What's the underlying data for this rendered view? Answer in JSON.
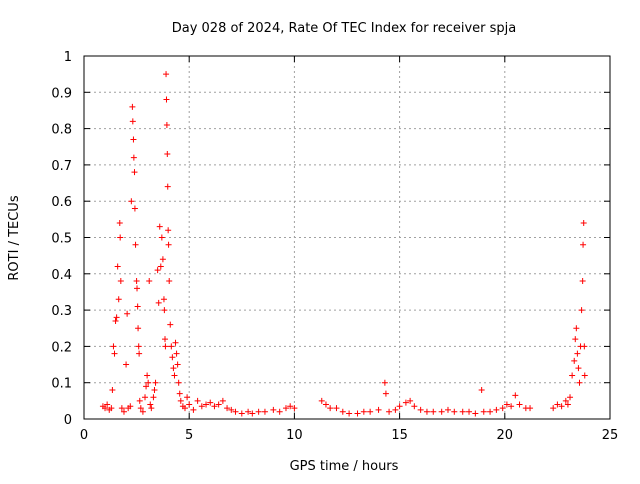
{
  "chart_data": {
    "type": "scatter",
    "title": "Day 028 of 2024, Rate Of TEC Index for receiver spja",
    "xlabel": "GPS time / hours",
    "ylabel": "ROTI / TECUs",
    "xlim": [
      0,
      25
    ],
    "ylim": [
      0,
      1
    ],
    "x_ticks": [
      "0",
      "5",
      "10",
      "15",
      "20",
      "25"
    ],
    "y_ticks": [
      "0",
      "0.1",
      "0.2",
      "0.3",
      "0.4",
      "0.5",
      "0.6",
      "0.7",
      "0.8",
      "0.9",
      "1"
    ],
    "grid": true,
    "marker": "plus",
    "color": "#ff0000",
    "points": [
      [
        0.9,
        0.035
      ],
      [
        1.0,
        0.03
      ],
      [
        1.1,
        0.04
      ],
      [
        1.2,
        0.025
      ],
      [
        1.3,
        0.03
      ],
      [
        1.35,
        0.08
      ],
      [
        1.4,
        0.2
      ],
      [
        1.45,
        0.18
      ],
      [
        1.5,
        0.27
      ],
      [
        1.55,
        0.28
      ],
      [
        1.6,
        0.42
      ],
      [
        1.65,
        0.33
      ],
      [
        1.7,
        0.54
      ],
      [
        1.72,
        0.5
      ],
      [
        1.75,
        0.38
      ],
      [
        1.8,
        0.03
      ],
      [
        1.9,
        0.02
      ],
      [
        2.0,
        0.15
      ],
      [
        2.05,
        0.29
      ],
      [
        2.1,
        0.03
      ],
      [
        2.2,
        0.035
      ],
      [
        2.25,
        0.6
      ],
      [
        2.3,
        0.86
      ],
      [
        2.32,
        0.82
      ],
      [
        2.35,
        0.77
      ],
      [
        2.37,
        0.72
      ],
      [
        2.4,
        0.68
      ],
      [
        2.42,
        0.58
      ],
      [
        2.45,
        0.48
      ],
      [
        2.5,
        0.38
      ],
      [
        2.52,
        0.36
      ],
      [
        2.55,
        0.31
      ],
      [
        2.57,
        0.25
      ],
      [
        2.6,
        0.2
      ],
      [
        2.62,
        0.18
      ],
      [
        2.65,
        0.05
      ],
      [
        2.7,
        0.03
      ],
      [
        2.8,
        0.02
      ],
      [
        2.9,
        0.06
      ],
      [
        2.95,
        0.09
      ],
      [
        3.0,
        0.12
      ],
      [
        3.05,
        0.1
      ],
      [
        3.1,
        0.38
      ],
      [
        3.15,
        0.04
      ],
      [
        3.2,
        0.03
      ],
      [
        3.3,
        0.06
      ],
      [
        3.35,
        0.08
      ],
      [
        3.4,
        0.1
      ],
      [
        3.5,
        0.41
      ],
      [
        3.55,
        0.32
      ],
      [
        3.6,
        0.53
      ],
      [
        3.65,
        0.42
      ],
      [
        3.7,
        0.5
      ],
      [
        3.75,
        0.44
      ],
      [
        3.8,
        0.33
      ],
      [
        3.82,
        0.3
      ],
      [
        3.85,
        0.22
      ],
      [
        3.87,
        0.2
      ],
      [
        3.9,
        0.95
      ],
      [
        3.92,
        0.88
      ],
      [
        3.94,
        0.81
      ],
      [
        3.96,
        0.73
      ],
      [
        3.98,
        0.64
      ],
      [
        4.0,
        0.52
      ],
      [
        4.02,
        0.48
      ],
      [
        4.05,
        0.38
      ],
      [
        4.1,
        0.26
      ],
      [
        4.15,
        0.2
      ],
      [
        4.2,
        0.17
      ],
      [
        4.25,
        0.14
      ],
      [
        4.3,
        0.12
      ],
      [
        4.35,
        0.21
      ],
      [
        4.4,
        0.18
      ],
      [
        4.45,
        0.15
      ],
      [
        4.5,
        0.1
      ],
      [
        4.55,
        0.07
      ],
      [
        4.6,
        0.05
      ],
      [
        4.7,
        0.035
      ],
      [
        4.8,
        0.03
      ],
      [
        4.9,
        0.06
      ],
      [
        5.0,
        0.04
      ],
      [
        5.2,
        0.025
      ],
      [
        5.4,
        0.05
      ],
      [
        5.6,
        0.035
      ],
      [
        5.8,
        0.04
      ],
      [
        6.0,
        0.045
      ],
      [
        6.2,
        0.035
      ],
      [
        6.4,
        0.04
      ],
      [
        6.6,
        0.05
      ],
      [
        6.8,
        0.03
      ],
      [
        7.0,
        0.025
      ],
      [
        7.2,
        0.02
      ],
      [
        7.5,
        0.015
      ],
      [
        7.8,
        0.02
      ],
      [
        8.0,
        0.015
      ],
      [
        8.3,
        0.02
      ],
      [
        8.6,
        0.02
      ],
      [
        9.0,
        0.025
      ],
      [
        9.3,
        0.02
      ],
      [
        9.6,
        0.03
      ],
      [
        9.8,
        0.035
      ],
      [
        10.0,
        0.03
      ],
      [
        11.3,
        0.05
      ],
      [
        11.5,
        0.04
      ],
      [
        11.7,
        0.03
      ],
      [
        12.0,
        0.03
      ],
      [
        12.3,
        0.02
      ],
      [
        12.6,
        0.015
      ],
      [
        13.0,
        0.015
      ],
      [
        13.3,
        0.02
      ],
      [
        13.6,
        0.02
      ],
      [
        14.0,
        0.025
      ],
      [
        14.3,
        0.1
      ],
      [
        14.35,
        0.07
      ],
      [
        14.5,
        0.02
      ],
      [
        14.8,
        0.025
      ],
      [
        15.0,
        0.035
      ],
      [
        15.3,
        0.045
      ],
      [
        15.5,
        0.05
      ],
      [
        15.7,
        0.035
      ],
      [
        16.0,
        0.025
      ],
      [
        16.3,
        0.02
      ],
      [
        16.6,
        0.02
      ],
      [
        17.0,
        0.02
      ],
      [
        17.3,
        0.025
      ],
      [
        17.6,
        0.02
      ],
      [
        18.0,
        0.02
      ],
      [
        18.3,
        0.02
      ],
      [
        18.6,
        0.015
      ],
      [
        18.9,
        0.08
      ],
      [
        19.0,
        0.02
      ],
      [
        19.3,
        0.02
      ],
      [
        19.6,
        0.025
      ],
      [
        19.9,
        0.03
      ],
      [
        20.1,
        0.04
      ],
      [
        20.3,
        0.035
      ],
      [
        20.5,
        0.065
      ],
      [
        20.7,
        0.04
      ],
      [
        21.0,
        0.03
      ],
      [
        21.2,
        0.03
      ],
      [
        22.3,
        0.03
      ],
      [
        22.5,
        0.04
      ],
      [
        22.7,
        0.035
      ],
      [
        22.9,
        0.05
      ],
      [
        23.0,
        0.04
      ],
      [
        23.1,
        0.06
      ],
      [
        23.2,
        0.12
      ],
      [
        23.3,
        0.16
      ],
      [
        23.35,
        0.22
      ],
      [
        23.4,
        0.25
      ],
      [
        23.45,
        0.18
      ],
      [
        23.5,
        0.14
      ],
      [
        23.55,
        0.1
      ],
      [
        23.6,
        0.2
      ],
      [
        23.65,
        0.3
      ],
      [
        23.7,
        0.38
      ],
      [
        23.72,
        0.48
      ],
      [
        23.75,
        0.54
      ],
      [
        23.78,
        0.2
      ],
      [
        23.8,
        0.12
      ]
    ]
  }
}
